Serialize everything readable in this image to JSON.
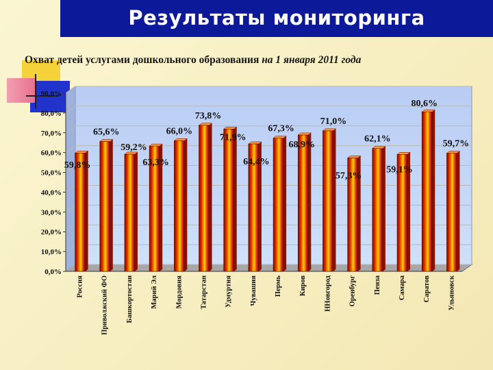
{
  "header": {
    "title": "Результаты мониторинга"
  },
  "chart_data": {
    "type": "bar",
    "title": "Охват детей услугами дошкольного образования ",
    "title_date": "на 1 января 2011 года",
    "categories": [
      "Россия",
      "Приволжский ФО",
      "Башкортостан",
      "Марий Эл",
      "Мордовия",
      "Татарстан",
      "Удмуртия",
      "Чувашия",
      "Пермь",
      "Киров",
      "ННовгород",
      "Оренбург",
      "Пенза",
      "Самара",
      "Саратов",
      "Ульяновск"
    ],
    "values": [
      59.8,
      65.6,
      59.2,
      63.3,
      66.0,
      73.8,
      71.9,
      64.4,
      67.3,
      68.9,
      71.0,
      57.3,
      62.1,
      59.1,
      80.6,
      59.7
    ],
    "value_labels": [
      "59,8%",
      "65,6%",
      "59,2%",
      "63,3%",
      "66,0%",
      "73,8%",
      "71,9%",
      "64,4%",
      "67,3%",
      "68,9%",
      "71,0%",
      "57,3%",
      "62,1%",
      "59,1%",
      "80,6%",
      "59,7%"
    ],
    "y_tick_labels": [
      "0,0%",
      "10,0%",
      "20,0%",
      "30,0%",
      "40,0%",
      "50,0%",
      "60,0%",
      "70,0%",
      "80,0%",
      "90,0%"
    ],
    "ylim": [
      0,
      90
    ],
    "grid": true,
    "bar_color": "#e03000",
    "bar_highlight": "#ffd000",
    "plot_bg": "#cfe0fa"
  }
}
